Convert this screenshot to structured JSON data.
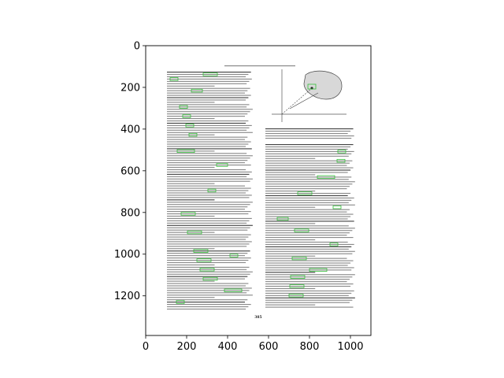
{
  "chart_data": {
    "type": "image",
    "title": "",
    "xlabel": "",
    "ylabel": "",
    "xlim": [
      0,
      1100
    ],
    "ylim": [
      1390,
      0
    ],
    "x_ticks": [
      0,
      200,
      400,
      600,
      800,
      1000
    ],
    "y_ticks": [
      0,
      200,
      400,
      600,
      800,
      1000,
      1200
    ],
    "grid": false,
    "legend": "none",
    "image": {
      "content": "scanned journal page with green highlight boxes",
      "page_number_text": "385",
      "highlight_color": "#35c03a",
      "blob_color": "#d8d8d8"
    }
  }
}
